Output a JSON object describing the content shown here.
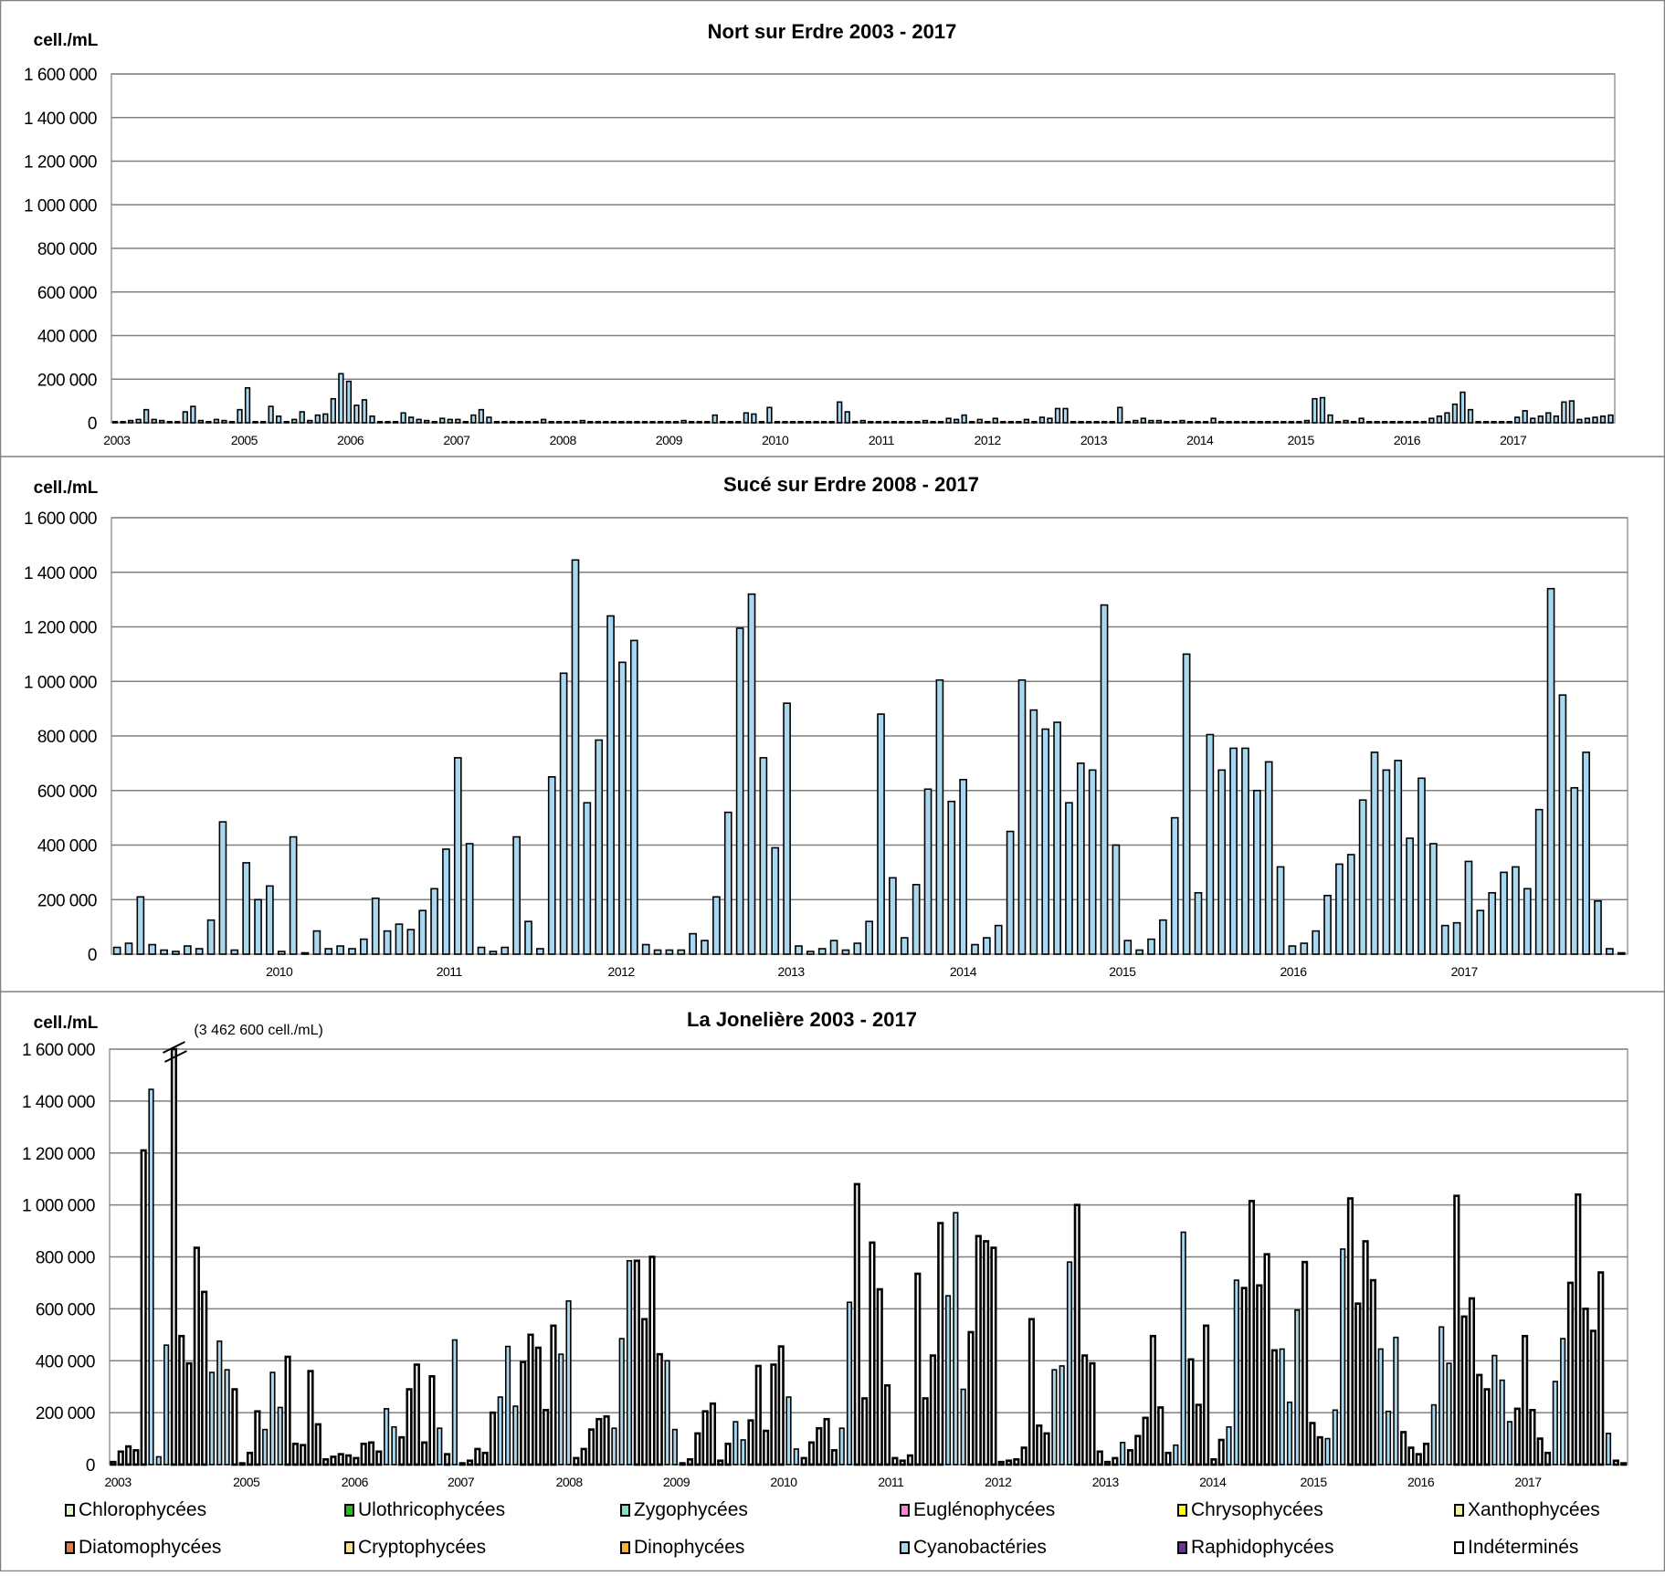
{
  "legend": [
    {
      "name": "Chlorophycées",
      "color": "#e4f5cf"
    },
    {
      "name": "Ulothricophycées",
      "color": "#1fbf1f"
    },
    {
      "name": "Zygophycées",
      "color": "#80e0c8"
    },
    {
      "name": "Euglénophycées",
      "color": "#ff80e0"
    },
    {
      "name": "Chrysophycées",
      "color": "#ffff00"
    },
    {
      "name": "Xanthophycées",
      "color": "#f3eea0"
    },
    {
      "name": "Diatomophycées",
      "color": "#e08040"
    },
    {
      "name": "Cryptophycées",
      "color": "#ffe080"
    },
    {
      "name": "Dinophycées",
      "color": "#ffb030"
    },
    {
      "name": "Cyanobactéries",
      "color": "#a8d8f0"
    },
    {
      "name": "Raphidophycées",
      "color": "#7030a0"
    },
    {
      "name": "Indéterminés",
      "color": "#ffffff"
    }
  ],
  "chart_data": [
    {
      "type": "bar",
      "title": "Nort sur Erdre 2003 - 2017",
      "ylabel": "cell./mL",
      "ylim": [
        0,
        1600000
      ],
      "yticks": [
        "0",
        "200 000",
        "400 000",
        "600 000",
        "800 000",
        "1 000 000",
        "1 200 000",
        "1 400 000",
        "1 600 000"
      ],
      "xticks": [
        "2003",
        "2005",
        "2006",
        "2007",
        "2008",
        "2009",
        "2010",
        "2011",
        "2012",
        "2013",
        "2014",
        "2015",
        "2016",
        "2017"
      ],
      "units_note": "values in thousands cell./mL, dominant group c=Cyanobactéries",
      "values": [
        5,
        5,
        10,
        15,
        60,
        15,
        10,
        5,
        5,
        50,
        75,
        10,
        5,
        15,
        10,
        5,
        60,
        160,
        5,
        5,
        75,
        30,
        5,
        15,
        50,
        10,
        35,
        40,
        110,
        225,
        190,
        80,
        105,
        30,
        5,
        5,
        5,
        45,
        25,
        15,
        10,
        5,
        20,
        15,
        15,
        5,
        35,
        60,
        25,
        5,
        5,
        5,
        5,
        5,
        5,
        15,
        5,
        5,
        5,
        5,
        10,
        5,
        5,
        5,
        5,
        5,
        5,
        5,
        5,
        5,
        5,
        5,
        5,
        10,
        5,
        5,
        5,
        35,
        5,
        5,
        5,
        45,
        40,
        5,
        70,
        5,
        5,
        5,
        5,
        5,
        5,
        5,
        5,
        95,
        50,
        5,
        10,
        5,
        5,
        5,
        5,
        5,
        5,
        5,
        10,
        5,
        5,
        20,
        15,
        35,
        5,
        15,
        5,
        20,
        5,
        5,
        5,
        15,
        5,
        25,
        20,
        65,
        65,
        5,
        5,
        5,
        5,
        5,
        5,
        70,
        5,
        10,
        20,
        10,
        10,
        5,
        5,
        10,
        5,
        5,
        5,
        20,
        5,
        5,
        5,
        5,
        5,
        5,
        5,
        5,
        5,
        5,
        5,
        10,
        110,
        115,
        35,
        5,
        10,
        5,
        20,
        5,
        5,
        5,
        5,
        5,
        5,
        5,
        5,
        20,
        30,
        45,
        85,
        140,
        60,
        5,
        5,
        5,
        5,
        5,
        25,
        55,
        20,
        30,
        45,
        30,
        95,
        100,
        15,
        20,
        25,
        30,
        35
      ]
    },
    {
      "type": "bar",
      "title": "Sucé sur Erdre 2008 - 2017",
      "ylabel": "cell./mL",
      "ylim": [
        0,
        1600000
      ],
      "yticks": [
        "0",
        "200 000",
        "400 000",
        "600 000",
        "800 000",
        "1 000 000",
        "1 200 000",
        "1 400 000",
        "1 600 000"
      ],
      "xticks": [
        "2010",
        "2011",
        "2012",
        "2013",
        "2014",
        "2015",
        "2016",
        "2017"
      ],
      "units_note": "values in thousands cell./mL, dominant group Cyanobactéries",
      "values": [
        25,
        40,
        210,
        35,
        15,
        10,
        30,
        20,
        125,
        485,
        15,
        335,
        200,
        250,
        10,
        430,
        5,
        85,
        20,
        30,
        20,
        55,
        205,
        85,
        110,
        90,
        160,
        240,
        385,
        720,
        405,
        25,
        10,
        25,
        430,
        120,
        20,
        650,
        1030,
        1445,
        555,
        785,
        1240,
        1070,
        1150,
        35,
        15,
        15,
        15,
        75,
        50,
        210,
        520,
        1195,
        1320,
        720,
        390,
        920,
        30,
        10,
        20,
        50,
        15,
        40,
        120,
        880,
        280,
        60,
        255,
        605,
        1005,
        560,
        640,
        35,
        60,
        105,
        450,
        1005,
        895,
        825,
        850,
        555,
        700,
        675,
        1280,
        400,
        50,
        15,
        55,
        125,
        500,
        1100,
        225,
        805,
        675,
        755,
        755,
        600,
        705,
        320,
        30,
        40,
        85,
        215,
        330,
        365,
        565,
        740,
        675,
        710,
        425,
        645,
        405,
        105,
        115,
        340,
        160,
        225,
        300,
        320,
        240,
        530,
        1340,
        950,
        610,
        740,
        195,
        20,
        5
      ]
    },
    {
      "type": "bar",
      "title": "La Jonelière 2003 - 2017",
      "ylabel": "cell./mL",
      "ylim": [
        0,
        1600000
      ],
      "annotation": "(3 462 600 cell./mL)",
      "yticks": [
        "0",
        "200 000",
        "400 000",
        "600 000",
        "800 000",
        "1 000 000",
        "1 200 000",
        "1 400 000",
        "1 600 000"
      ],
      "xticks": [
        "2003",
        "2005",
        "2006",
        "2007",
        "2008",
        "2009",
        "2010",
        "2011",
        "2012",
        "2013",
        "2014",
        "2015",
        "2016",
        "2017"
      ],
      "units_note": "[value in thousands, group] c=Cyanobactéries i=Indéterminés",
      "bars": [
        [
          10,
          "i"
        ],
        [
          50,
          "i"
        ],
        [
          70,
          "i"
        ],
        [
          55,
          "i"
        ],
        [
          1210,
          "i"
        ],
        [
          1445,
          "c"
        ],
        [
          30,
          "c"
        ],
        [
          460,
          "c"
        ],
        [
          3462.6,
          "i"
        ],
        [
          495,
          "i"
        ],
        [
          390,
          "i"
        ],
        [
          835,
          "i"
        ],
        [
          665,
          "i"
        ],
        [
          355,
          "c"
        ],
        [
          475,
          "c"
        ],
        [
          365,
          "c"
        ],
        [
          290,
          "i"
        ],
        [
          5,
          "i"
        ],
        [
          45,
          "i"
        ],
        [
          205,
          "i"
        ],
        [
          135,
          "c"
        ],
        [
          355,
          "c"
        ],
        [
          220,
          "c"
        ],
        [
          415,
          "i"
        ],
        [
          80,
          "i"
        ],
        [
          75,
          "i"
        ],
        [
          360,
          "i"
        ],
        [
          155,
          "i"
        ],
        [
          20,
          "i"
        ],
        [
          30,
          "i"
        ],
        [
          40,
          "i"
        ],
        [
          35,
          "i"
        ],
        [
          25,
          "i"
        ],
        [
          80,
          "i"
        ],
        [
          85,
          "i"
        ],
        [
          50,
          "i"
        ],
        [
          215,
          "c"
        ],
        [
          145,
          "c"
        ],
        [
          105,
          "i"
        ],
        [
          290,
          "i"
        ],
        [
          385,
          "i"
        ],
        [
          85,
          "i"
        ],
        [
          340,
          "i"
        ],
        [
          140,
          "c"
        ],
        [
          40,
          "i"
        ],
        [
          480,
          "c"
        ],
        [
          5,
          "i"
        ],
        [
          15,
          "i"
        ],
        [
          60,
          "i"
        ],
        [
          45,
          "i"
        ],
        [
          200,
          "i"
        ],
        [
          260,
          "c"
        ],
        [
          455,
          "c"
        ],
        [
          225,
          "c"
        ],
        [
          395,
          "i"
        ],
        [
          500,
          "i"
        ],
        [
          450,
          "i"
        ],
        [
          210,
          "i"
        ],
        [
          535,
          "i"
        ],
        [
          425,
          "c"
        ],
        [
          630,
          "c"
        ],
        [
          25,
          "i"
        ],
        [
          60,
          "i"
        ],
        [
          135,
          "i"
        ],
        [
          175,
          "i"
        ],
        [
          185,
          "i"
        ],
        [
          140,
          "c"
        ],
        [
          485,
          "c"
        ],
        [
          785,
          "c"
        ],
        [
          785,
          "i"
        ],
        [
          560,
          "i"
        ],
        [
          800,
          "i"
        ],
        [
          425,
          "i"
        ],
        [
          400,
          "c"
        ],
        [
          135,
          "c"
        ],
        [
          5,
          "i"
        ],
        [
          20,
          "i"
        ],
        [
          120,
          "i"
        ],
        [
          205,
          "i"
        ],
        [
          235,
          "i"
        ],
        [
          15,
          "i"
        ],
        [
          80,
          "i"
        ],
        [
          165,
          "c"
        ],
        [
          95,
          "c"
        ],
        [
          170,
          "i"
        ],
        [
          380,
          "i"
        ],
        [
          130,
          "i"
        ],
        [
          385,
          "i"
        ],
        [
          455,
          "i"
        ],
        [
          260,
          "c"
        ],
        [
          60,
          "c"
        ],
        [
          25,
          "i"
        ],
        [
          85,
          "i"
        ],
        [
          140,
          "i"
        ],
        [
          175,
          "i"
        ],
        [
          55,
          "i"
        ],
        [
          140,
          "c"
        ],
        [
          625,
          "c"
        ],
        [
          1080,
          "i"
        ],
        [
          255,
          "i"
        ],
        [
          855,
          "i"
        ],
        [
          675,
          "i"
        ],
        [
          305,
          "i"
        ],
        [
          25,
          "i"
        ],
        [
          15,
          "i"
        ],
        [
          35,
          "i"
        ],
        [
          735,
          "i"
        ],
        [
          255,
          "i"
        ],
        [
          420,
          "i"
        ],
        [
          930,
          "i"
        ],
        [
          650,
          "c"
        ],
        [
          970,
          "c"
        ],
        [
          290,
          "c"
        ],
        [
          510,
          "i"
        ],
        [
          880,
          "i"
        ],
        [
          860,
          "i"
        ],
        [
          835,
          "i"
        ],
        [
          10,
          "i"
        ],
        [
          15,
          "i"
        ],
        [
          20,
          "i"
        ],
        [
          65,
          "i"
        ],
        [
          560,
          "i"
        ],
        [
          150,
          "i"
        ],
        [
          120,
          "i"
        ],
        [
          365,
          "c"
        ],
        [
          380,
          "c"
        ],
        [
          780,
          "c"
        ],
        [
          1000,
          "i"
        ],
        [
          420,
          "i"
        ],
        [
          390,
          "i"
        ],
        [
          50,
          "i"
        ],
        [
          10,
          "i"
        ],
        [
          25,
          "i"
        ],
        [
          85,
          "c"
        ],
        [
          55,
          "i"
        ],
        [
          110,
          "i"
        ],
        [
          180,
          "i"
        ],
        [
          495,
          "i"
        ],
        [
          220,
          "i"
        ],
        [
          45,
          "i"
        ],
        [
          75,
          "c"
        ],
        [
          895,
          "c"
        ],
        [
          405,
          "i"
        ],
        [
          230,
          "i"
        ],
        [
          535,
          "i"
        ],
        [
          20,
          "i"
        ],
        [
          95,
          "i"
        ],
        [
          145,
          "c"
        ],
        [
          710,
          "c"
        ],
        [
          680,
          "i"
        ],
        [
          1015,
          "i"
        ],
        [
          690,
          "i"
        ],
        [
          810,
          "i"
        ],
        [
          440,
          "i"
        ],
        [
          445,
          "c"
        ],
        [
          240,
          "c"
        ],
        [
          595,
          "c"
        ],
        [
          780,
          "i"
        ],
        [
          160,
          "i"
        ],
        [
          105,
          "i"
        ],
        [
          100,
          "c"
        ],
        [
          210,
          "c"
        ],
        [
          830,
          "c"
        ],
        [
          1025,
          "i"
        ],
        [
          620,
          "i"
        ],
        [
          860,
          "i"
        ],
        [
          710,
          "i"
        ],
        [
          445,
          "c"
        ],
        [
          205,
          "c"
        ],
        [
          490,
          "c"
        ],
        [
          125,
          "i"
        ],
        [
          65,
          "i"
        ],
        [
          40,
          "i"
        ],
        [
          80,
          "i"
        ],
        [
          230,
          "c"
        ],
        [
          530,
          "c"
        ],
        [
          390,
          "c"
        ],
        [
          1035,
          "i"
        ],
        [
          570,
          "i"
        ],
        [
          640,
          "i"
        ],
        [
          345,
          "i"
        ],
        [
          290,
          "i"
        ],
        [
          420,
          "c"
        ],
        [
          325,
          "c"
        ],
        [
          165,
          "c"
        ],
        [
          215,
          "i"
        ],
        [
          495,
          "i"
        ],
        [
          210,
          "i"
        ],
        [
          100,
          "i"
        ],
        [
          45,
          "i"
        ],
        [
          320,
          "c"
        ],
        [
          485,
          "c"
        ],
        [
          700,
          "i"
        ],
        [
          1040,
          "i"
        ],
        [
          600,
          "i"
        ],
        [
          515,
          "i"
        ],
        [
          740,
          "i"
        ],
        [
          120,
          "c"
        ],
        [
          15,
          "i"
        ],
        [
          5,
          "i"
        ]
      ]
    }
  ]
}
